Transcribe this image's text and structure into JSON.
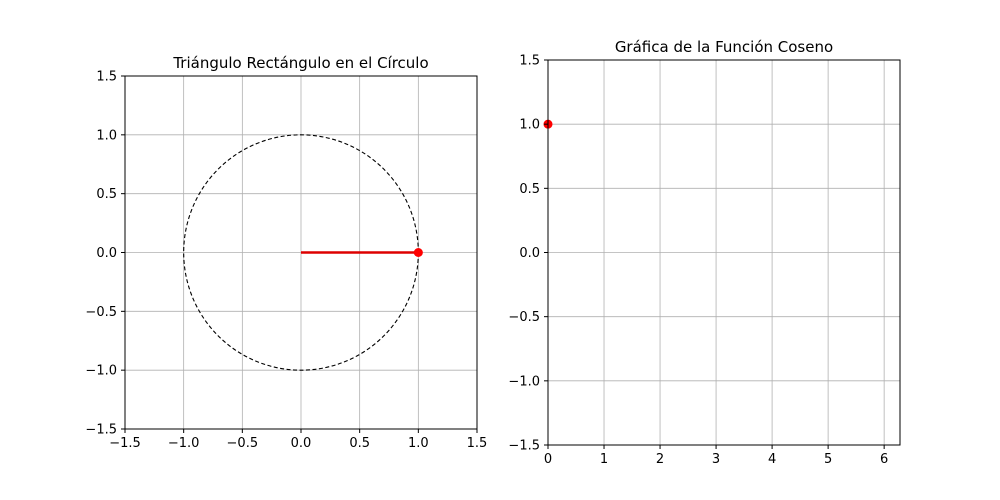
{
  "colors": {
    "background": "#ffffff",
    "grid": "#b0b0b0",
    "axes": "#000000",
    "circle": "#000000",
    "accent": "#ff0000",
    "angle_line": "#dd0000"
  },
  "chart_data": [
    {
      "type": "line",
      "title": "Triángulo Rectángulo en el Círculo",
      "xlabel": "",
      "ylabel": "",
      "xlim": [
        -1.5,
        1.5
      ],
      "ylim": [
        -1.5,
        1.5
      ],
      "xticks": [
        -1.5,
        -1.0,
        -0.5,
        0.0,
        0.5,
        1.0,
        1.5
      ],
      "yticks": [
        -1.5,
        -1.0,
        -0.5,
        0.0,
        0.5,
        1.0,
        1.5
      ],
      "xtick_labels": [
        "−1.5",
        "−1.0",
        "−0.5",
        "0.0",
        "0.5",
        "1.0",
        "1.5"
      ],
      "ytick_labels": [
        "−1.5",
        "−1.0",
        "−0.5",
        "0.0",
        "0.5",
        "1.0",
        "1.5"
      ],
      "grid": true,
      "unit_circle": {
        "center": [
          0,
          0
        ],
        "radius": 1,
        "style": "dashed"
      },
      "segment": {
        "from": [
          0,
          0
        ],
        "to": [
          1,
          0
        ]
      },
      "point": {
        "x": 1.0,
        "y": 0.0
      }
    },
    {
      "type": "scatter",
      "title": "Gráfica de la Función Coseno",
      "xlabel": "",
      "ylabel": "",
      "xlim": [
        0,
        6.283
      ],
      "ylim": [
        -1.5,
        1.5
      ],
      "xticks": [
        0,
        1,
        2,
        3,
        4,
        5,
        6
      ],
      "yticks": [
        -1.5,
        -1.0,
        -0.5,
        0.0,
        0.5,
        1.0,
        1.5
      ],
      "xtick_labels": [
        "0",
        "1",
        "2",
        "3",
        "4",
        "5",
        "6"
      ],
      "ytick_labels": [
        "−1.5",
        "−1.0",
        "−0.5",
        "0.0",
        "0.5",
        "1.0",
        "1.5"
      ],
      "grid": true,
      "series": [
        {
          "x": [
            0
          ],
          "y": [
            1.0
          ]
        }
      ]
    }
  ]
}
